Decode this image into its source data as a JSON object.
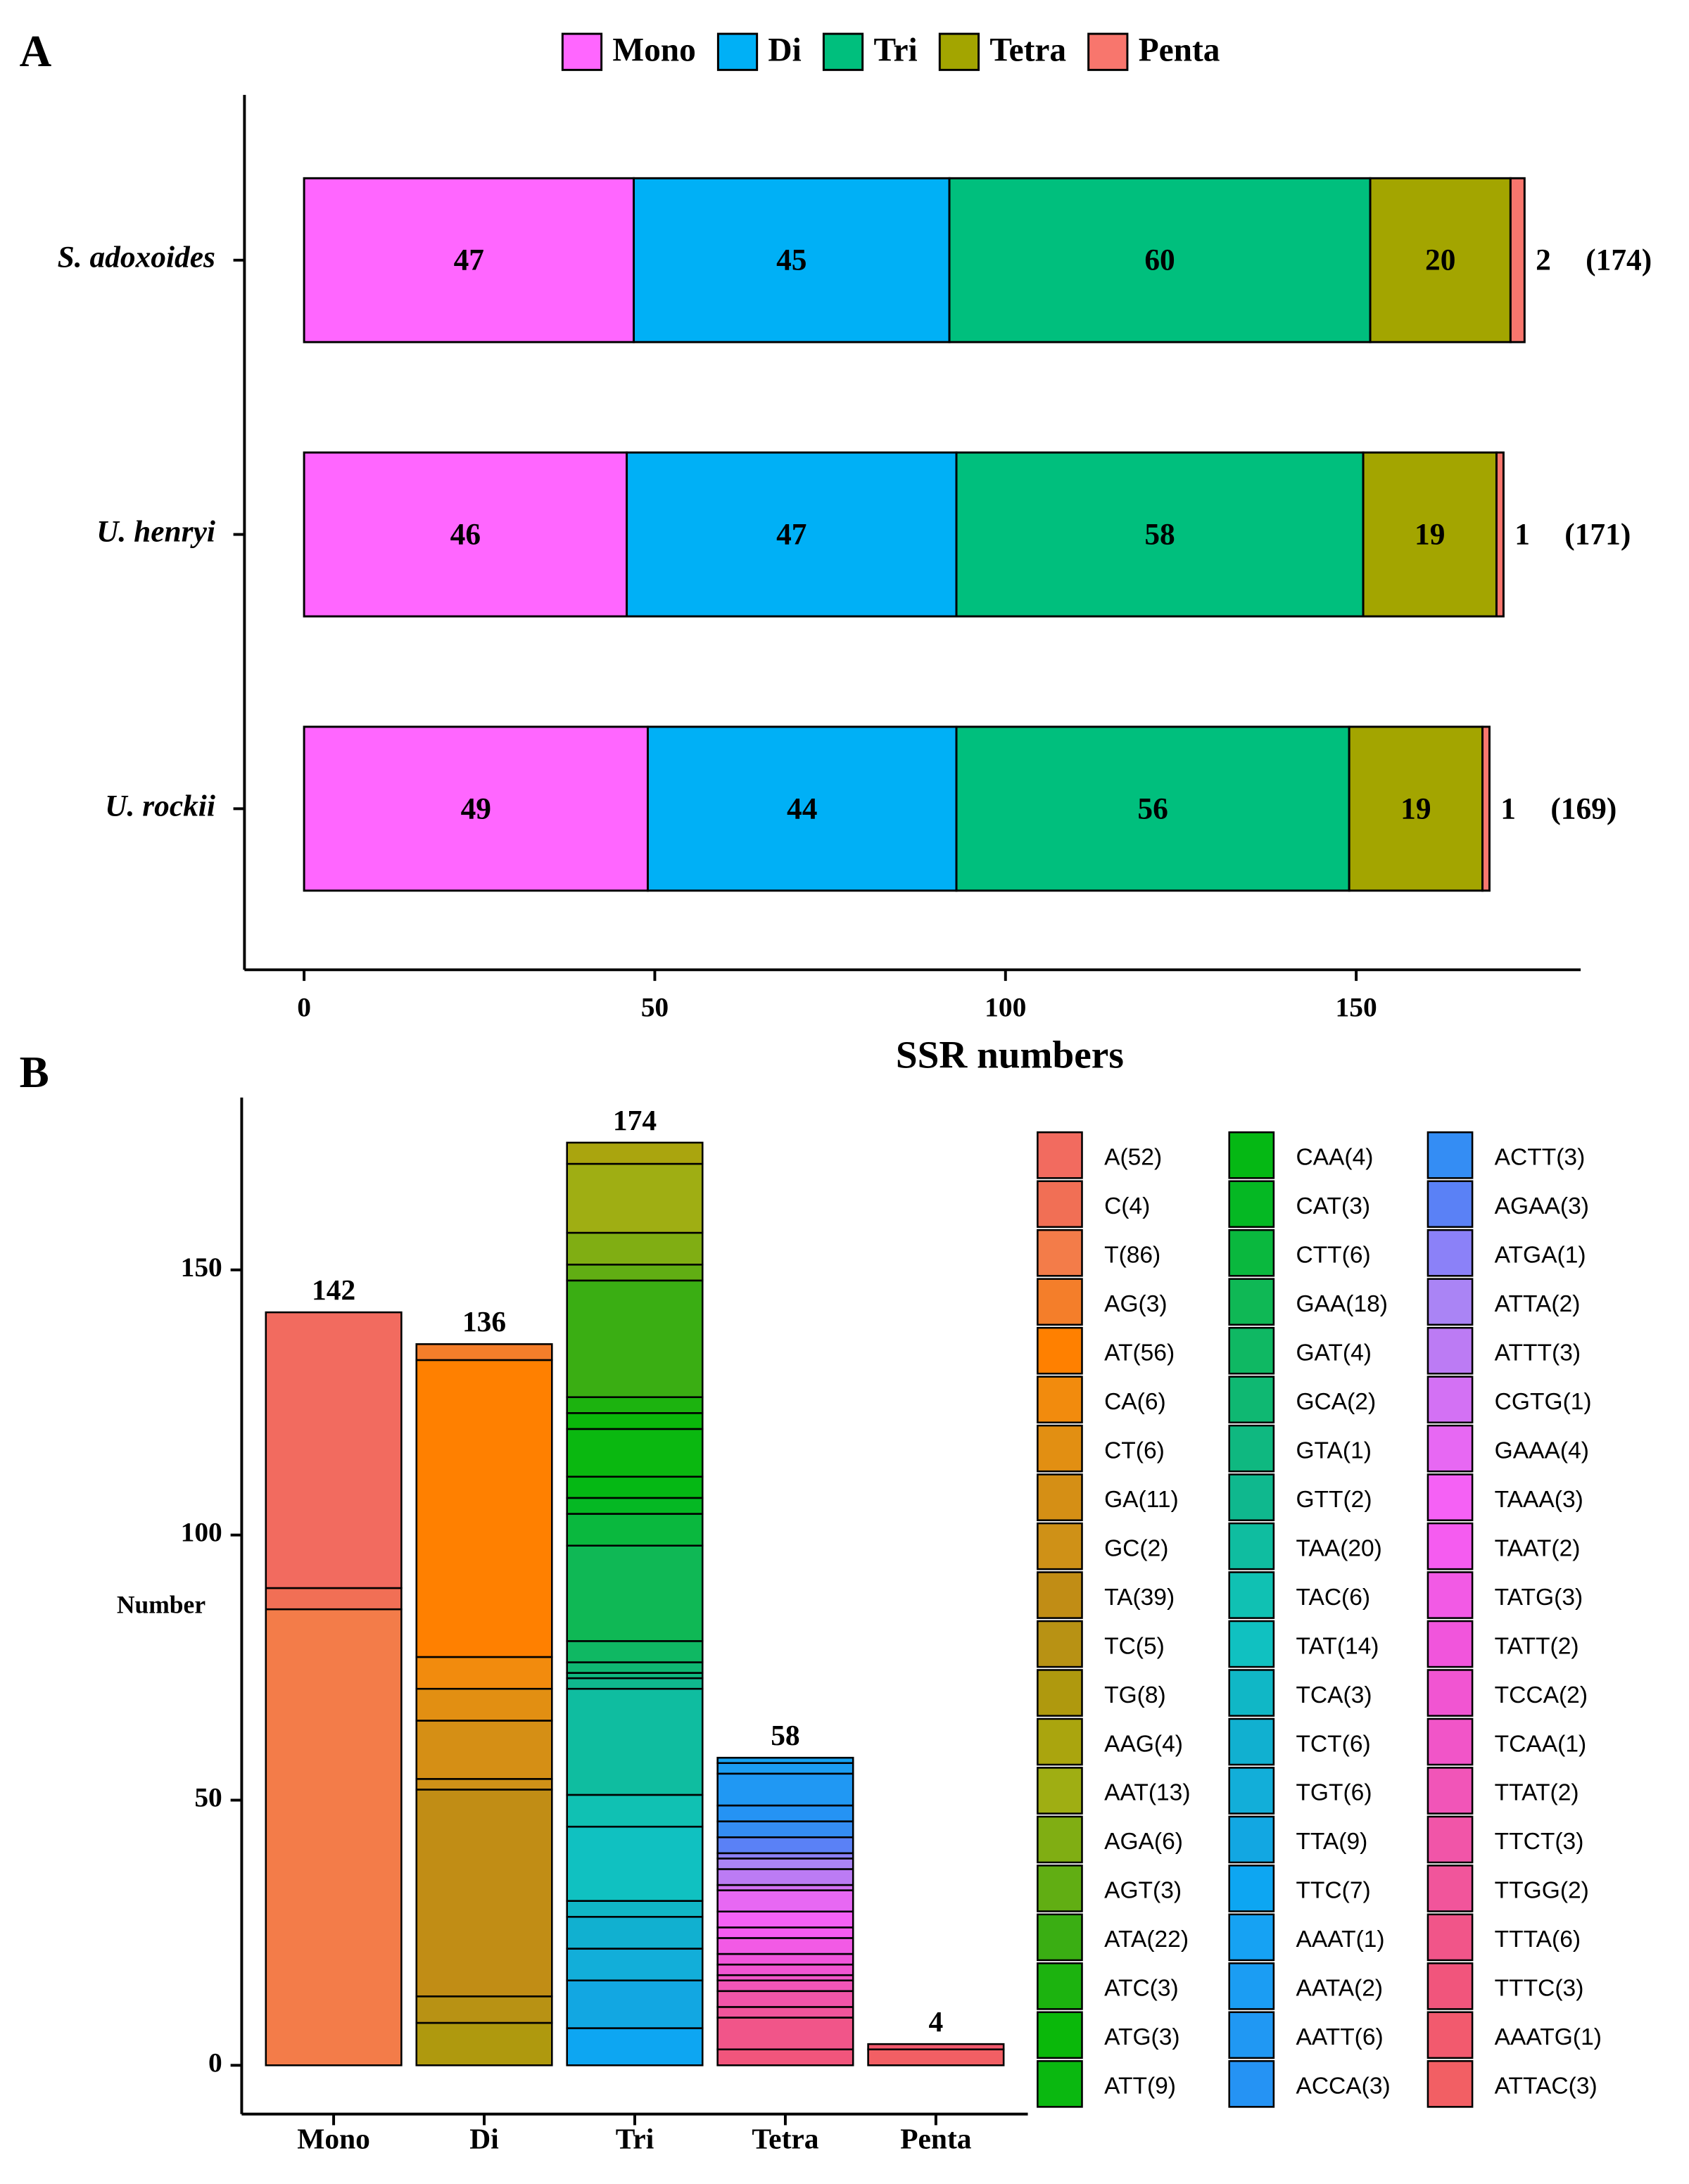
{
  "chart_data": [
    {
      "type": "bar",
      "orientation": "horizontal",
      "stacked": true,
      "panel_label": "A",
      "categories": [
        "S. adoxoides",
        "U. henryi",
        "U. rockii"
      ],
      "series": [
        {
          "name": "Mono",
          "color": "#ff66ff",
          "values": [
            47,
            46,
            49
          ]
        },
        {
          "name": "Di",
          "color": "#00b0f6",
          "values": [
            45,
            47,
            44
          ]
        },
        {
          "name": "Tri",
          "color": "#00bf7d",
          "values": [
            60,
            58,
            56
          ]
        },
        {
          "name": "Tetra",
          "color": "#a3a500",
          "values": [
            20,
            19,
            19
          ]
        },
        {
          "name": "Penta",
          "color": "#f8766d",
          "values": [
            2,
            1,
            1
          ]
        }
      ],
      "totals": {
        "values": [
          174,
          171,
          169
        ],
        "value_labels": [
          "(174)",
          "(171)",
          "(169)"
        ]
      },
      "xlabel": "SSR numbers",
      "xlim": [
        -8.5,
        182
      ],
      "xticks": [
        0,
        50,
        100,
        150
      ],
      "legend": "top"
    },
    {
      "type": "bar",
      "stacked": true,
      "panel_label": "B",
      "categories": [
        "Mono",
        "Di",
        "Tri",
        "Tetra",
        "Penta"
      ],
      "series": [
        {
          "name": "A(52)",
          "color": "hsl(5,85%,66%)",
          "values": [
            52,
            null,
            null,
            null,
            null
          ]
        },
        {
          "name": "C(4)",
          "color": "hsl(10,85%,64%)",
          "values": [
            4,
            null,
            null,
            null,
            null
          ]
        },
        {
          "name": "T(86)",
          "color": "hsl(18,88%,62%)",
          "values": [
            86,
            null,
            null,
            null,
            null
          ]
        },
        {
          "name": "AG(3)",
          "color": "hsl(25,90%,56%)",
          "values": [
            null,
            3,
            null,
            null,
            null
          ]
        },
        {
          "name": "AT(56)",
          "color": "hsl(30,100%,50%)",
          "values": [
            null,
            56,
            null,
            null,
            null
          ]
        },
        {
          "name": "CA(6)",
          "color": "hsl(33,90%,50%)",
          "values": [
            null,
            6,
            null,
            null,
            null
          ]
        },
        {
          "name": "CT(6)",
          "color": "hsl(36,85%,48%)",
          "values": [
            null,
            6,
            null,
            null,
            null
          ]
        },
        {
          "name": "GA(11)",
          "color": "hsl(38,82%,46%)",
          "values": [
            null,
            11,
            null,
            null,
            null
          ]
        },
        {
          "name": "GC(2)",
          "color": "hsl(40,80%,45%)",
          "values": [
            null,
            2,
            null,
            null,
            null
          ]
        },
        {
          "name": "TA(39)",
          "color": "hsl(42,80%,42%)",
          "values": [
            null,
            39,
            null,
            null,
            null
          ]
        },
        {
          "name": "TC(5)",
          "color": "hsl(46,80%,40%)",
          "values": [
            null,
            5,
            null,
            null,
            null
          ]
        },
        {
          "name": "TG(8)",
          "color": "hsl(52,85%,37%)",
          "values": [
            null,
            8,
            null,
            null,
            null
          ]
        },
        {
          "name": "AAG(4)",
          "color": "hsl(58,85%,36%)",
          "values": [
            null,
            null,
            4,
            null,
            null
          ]
        },
        {
          "name": "AAT(13)",
          "color": "hsl(66,80%,38%)",
          "values": [
            null,
            null,
            13,
            null,
            null
          ]
        },
        {
          "name": "AGA(6)",
          "color": "hsl(78,80%,38%)",
          "values": [
            null,
            null,
            6,
            null,
            null
          ]
        },
        {
          "name": "AGT(3)",
          "color": "hsl(90,80%,38%)",
          "values": [
            null,
            null,
            3,
            null,
            null
          ]
        },
        {
          "name": "ATA(22)",
          "color": "hsl(105,80%,38%)",
          "values": [
            null,
            null,
            22,
            null,
            null
          ]
        },
        {
          "name": "ATC(3)",
          "color": "hsl(115,85%,38%)",
          "values": [
            null,
            null,
            3,
            null,
            null
          ]
        },
        {
          "name": "ATG(3)",
          "color": "hsl(120,90%,38%)",
          "values": [
            null,
            null,
            3,
            null,
            null
          ]
        },
        {
          "name": "ATT(9)",
          "color": "hsl(122,90%,38%)",
          "values": [
            null,
            null,
            9,
            null,
            null
          ]
        },
        {
          "name": "CAA(4)",
          "color": "hsl(125,95%,37%)",
          "values": [
            null,
            null,
            4,
            null,
            null
          ]
        },
        {
          "name": "CAT(3)",
          "color": "hsl(130,95%,37%)",
          "values": [
            null,
            null,
            3,
            null,
            null
          ]
        },
        {
          "name": "CTT(6)",
          "color": "hsl(138,90%,38%)",
          "values": [
            null,
            null,
            6,
            null,
            null
          ]
        },
        {
          "name": "GAA(18)",
          "color": "hsl(145,85%,39%)",
          "values": [
            null,
            null,
            18,
            null,
            null
          ]
        },
        {
          "name": "GAT(4)",
          "color": "hsl(150,85%,39%)",
          "values": [
            null,
            null,
            4,
            null,
            null
          ]
        },
        {
          "name": "GCA(2)",
          "color": "hsl(155,85%,39%)",
          "values": [
            null,
            null,
            2,
            null,
            null
          ]
        },
        {
          "name": "GTA(1)",
          "color": "hsl(160,85%,39%)",
          "values": [
            null,
            null,
            1,
            null,
            null
          ]
        },
        {
          "name": "GTT(2)",
          "color": "hsl(165,85%,39%)",
          "values": [
            null,
            null,
            2,
            null,
            null
          ]
        },
        {
          "name": "TAA(20)",
          "color": "hsl(170,85%,40%)",
          "values": [
            null,
            null,
            20,
            null,
            null
          ]
        },
        {
          "name": "TAC(6)",
          "color": "hsl(175,85%,41%)",
          "values": [
            null,
            null,
            6,
            null,
            null
          ]
        },
        {
          "name": "TAT(14)",
          "color": "hsl(180,85%,41%)",
          "values": [
            null,
            null,
            14,
            null,
            null
          ]
        },
        {
          "name": "TCA(3)",
          "color": "hsl(185,85%,42%)",
          "values": [
            null,
            null,
            3,
            null,
            null
          ]
        },
        {
          "name": "TCT(6)",
          "color": "hsl(190,85%,44%)",
          "values": [
            null,
            null,
            6,
            null,
            null
          ]
        },
        {
          "name": "TGT(6)",
          "color": "hsl(193,85%,46%)",
          "values": [
            null,
            null,
            6,
            null,
            null
          ]
        },
        {
          "name": "TTA(9)",
          "color": "hsl(197,85%,48%)",
          "values": [
            null,
            null,
            9,
            null,
            null
          ]
        },
        {
          "name": "TTC(7)",
          "color": "hsl(200,90%,50%)",
          "values": [
            null,
            null,
            7,
            null,
            null
          ]
        },
        {
          "name": "AAAT(1)",
          "color": "hsl(202,90%,52%)",
          "values": [
            null,
            null,
            null,
            1,
            null
          ]
        },
        {
          "name": "AATA(2)",
          "color": "hsl(204,90%,53%)",
          "values": [
            null,
            null,
            null,
            2,
            null
          ]
        },
        {
          "name": "AATT(6)",
          "color": "hsl(206,90%,54%)",
          "values": [
            null,
            null,
            null,
            6,
            null
          ]
        },
        {
          "name": "ACCA(3)",
          "color": "hsl(208,90%,55%)",
          "values": [
            null,
            null,
            null,
            3,
            null
          ]
        },
        {
          "name": "ACTT(3)",
          "color": "hsl(212,90%,58%)",
          "values": [
            null,
            null,
            null,
            3,
            null
          ]
        },
        {
          "name": "AGAA(3)",
          "color": "hsl(225,90%,66%)",
          "values": [
            null,
            null,
            null,
            3,
            null
          ]
        },
        {
          "name": "ATGA(1)",
          "color": "hsl(245,90%,74%)",
          "values": [
            null,
            null,
            null,
            1,
            null
          ]
        },
        {
          "name": "ATTA(2)",
          "color": "hsl(260,85%,74%)",
          "values": [
            null,
            null,
            null,
            2,
            null
          ]
        },
        {
          "name": "ATTT(3)",
          "color": "hsl(272,85%,72%)",
          "values": [
            null,
            null,
            null,
            3,
            null
          ]
        },
        {
          "name": "CGTG(1)",
          "color": "hsl(285,85%,70%)",
          "values": [
            null,
            null,
            null,
            1,
            null
          ]
        },
        {
          "name": "GAAA(4)",
          "color": "hsl(295,85%,68%)",
          "values": [
            null,
            null,
            null,
            4,
            null
          ]
        },
        {
          "name": "TAAA(3)",
          "color": "hsl(300,88%,67%)",
          "values": [
            null,
            null,
            null,
            3,
            null
          ]
        },
        {
          "name": "TAAT(2)",
          "color": "hsl(302,88%,66%)",
          "values": [
            null,
            null,
            null,
            2,
            null
          ]
        },
        {
          "name": "TATG(3)",
          "color": "hsl(305,85%,65%)",
          "values": [
            null,
            null,
            null,
            3,
            null
          ]
        },
        {
          "name": "TATT(2)",
          "color": "hsl(308,85%,64%)",
          "values": [
            null,
            null,
            null,
            2,
            null
          ]
        },
        {
          "name": "TCCA(2)",
          "color": "hsl(312,85%,64%)",
          "values": [
            null,
            null,
            null,
            2,
            null
          ]
        },
        {
          "name": "TCAA(1)",
          "color": "hsl(316,85%,64%)",
          "values": [
            null,
            null,
            null,
            1,
            null
          ]
        },
        {
          "name": "TTAT(2)",
          "color": "hsl(322,85%,64%)",
          "values": [
            null,
            null,
            null,
            2,
            null
          ]
        },
        {
          "name": "TTCT(3)",
          "color": "hsl(328,85%,64%)",
          "values": [
            null,
            null,
            null,
            3,
            null
          ]
        },
        {
          "name": "TTGG(2)",
          "color": "hsl(333,85%,64%)",
          "values": [
            null,
            null,
            null,
            2,
            null
          ]
        },
        {
          "name": "TTTA(6)",
          "color": "hsl(340,85%,64%)",
          "values": [
            null,
            null,
            null,
            6,
            null
          ]
        },
        {
          "name": "TTTC(3)",
          "color": "hsl(345,85%,64%)",
          "values": [
            null,
            null,
            null,
            3,
            null
          ]
        },
        {
          "name": "AAATG(1)",
          "color": "hsl(352,85%,65%)",
          "values": [
            null,
            null,
            null,
            null,
            1
          ]
        },
        {
          "name": "ATTAC(3)",
          "color": "hsl(358,85%,66%)",
          "values": [
            null,
            null,
            null,
            null,
            3
          ]
        }
      ],
      "totals": [
        142,
        136,
        174,
        58,
        4
      ],
      "ylabel": "Number",
      "ylim": [
        -9.2,
        182.5
      ],
      "yticks": [
        0,
        50,
        100,
        150
      ],
      "legend": "right"
    }
  ]
}
